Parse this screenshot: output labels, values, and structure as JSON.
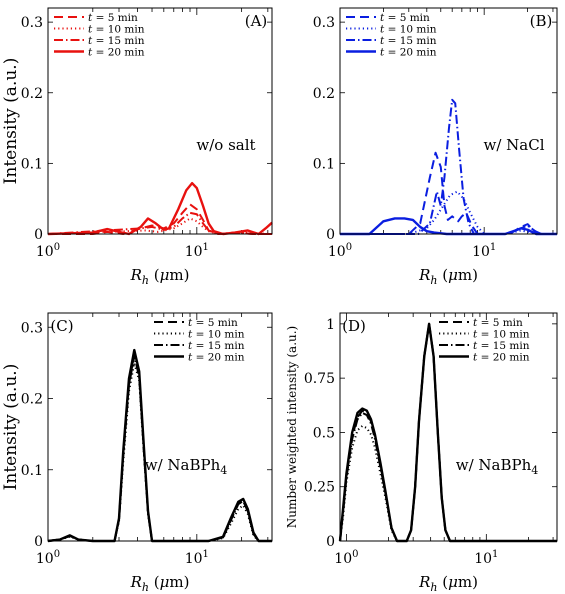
{
  "figure": {
    "legend_labels": [
      "t = 5 min",
      "t = 10 min",
      "t = 15 min",
      "t = 20 min"
    ],
    "legend_styles": [
      "dashed",
      "dotted",
      "dashdot",
      "solid"
    ]
  },
  "chart_data": [
    {
      "type": "line",
      "panel_label": "(A)",
      "annotation": "w/o salt",
      "xlabel": "R_h (μm)",
      "ylabel": "Intensity (a.u.)",
      "xscale": "log",
      "xlim": [
        1,
        32
      ],
      "ylim": [
        0,
        0.32
      ],
      "yticks": [
        0,
        0.1,
        0.2,
        0.3
      ],
      "ytick_labels": [
        "0",
        "0.1",
        "0.2",
        "0.3"
      ],
      "xticks": [
        1,
        10
      ],
      "xtick_labels": [
        "10^0",
        "10^1"
      ],
      "color": "#e8110f",
      "legend_position": "top-left",
      "series": [
        {
          "name": "t = 5 min",
          "style": "dashed",
          "x": [
            1,
            2,
            2.5,
            3.2,
            4.2,
            5,
            6,
            7,
            8,
            9,
            10,
            11,
            12,
            14,
            18,
            24,
            32
          ],
          "y": [
            0,
            0,
            0.003,
            0,
            0.008,
            0.012,
            0.008,
            0.015,
            0.03,
            0.042,
            0.035,
            0.02,
            0.005,
            0,
            0.002,
            0,
            0
          ]
        },
        {
          "name": "t = 10 min",
          "style": "dotted",
          "x": [
            1,
            2.5,
            4.5,
            5.5,
            7,
            8,
            9,
            10,
            11,
            12,
            14,
            20,
            32
          ],
          "y": [
            0,
            0.003,
            0.005,
            0.003,
            0.008,
            0.015,
            0.022,
            0.018,
            0.01,
            0.004,
            0,
            0.002,
            0
          ]
        },
        {
          "name": "t = 15 min",
          "style": "dashdot",
          "x": [
            1,
            2.5,
            4.2,
            5,
            6,
            7,
            8,
            9,
            10,
            11,
            12,
            14,
            18,
            24,
            32
          ],
          "y": [
            0,
            0.005,
            0.008,
            0.01,
            0.006,
            0.01,
            0.022,
            0.03,
            0.028,
            0.015,
            0.005,
            0,
            0.002,
            0,
            0
          ]
        },
        {
          "name": "t = 20 min",
          "style": "solid",
          "x": [
            1,
            2,
            2.5,
            3,
            3.5,
            4.2,
            4.7,
            5.3,
            6,
            6.5,
            7.5,
            8.5,
            9.3,
            10,
            11,
            12,
            13,
            15,
            18,
            22,
            26,
            29,
            32
          ],
          "y": [
            0,
            0.002,
            0.007,
            0.003,
            0,
            0.01,
            0.022,
            0.015,
            0.006,
            0.008,
            0.035,
            0.062,
            0.072,
            0.065,
            0.04,
            0.015,
            0.004,
            0,
            0.002,
            0.005,
            0,
            0.008,
            0.016
          ]
        }
      ]
    },
    {
      "type": "line",
      "panel_label": "(B)",
      "annotation": "w/ NaCl",
      "xlabel": "R_h (μm)",
      "ylabel": "",
      "xscale": "log",
      "xlim": [
        1,
        32
      ],
      "ylim": [
        0,
        0.32
      ],
      "yticks": [
        0,
        0.1,
        0.2,
        0.3
      ],
      "ytick_labels": [
        "0",
        "0.1",
        "0.2",
        "0.3"
      ],
      "xticks": [
        1,
        10
      ],
      "xtick_labels": [
        "10^0",
        "10^1"
      ],
      "color": "#0a1ee0",
      "legend_position": "top-left",
      "series": [
        {
          "name": "t = 5 min",
          "style": "dashed",
          "x": [
            1,
            3,
            3.6,
            4.2,
            4.6,
            5,
            5.3,
            5.6,
            6,
            6.6,
            7,
            7.5,
            8.2,
            9,
            10,
            12,
            15,
            18,
            20,
            22,
            25,
            32
          ],
          "y": [
            0,
            0,
            0.015,
            0.08,
            0.115,
            0.095,
            0.04,
            0.02,
            0.025,
            0.018,
            0.025,
            0.03,
            0.012,
            0,
            0,
            0,
            0,
            0.01,
            0.014,
            0.005,
            0,
            0
          ]
        },
        {
          "name": "t = 10 min",
          "style": "dotted",
          "x": [
            1,
            3,
            4,
            4.5,
            5.2,
            5.8,
            6.5,
            7.2,
            8,
            9,
            10,
            14,
            18,
            24,
            32
          ],
          "y": [
            0,
            0,
            0.008,
            0.02,
            0.04,
            0.055,
            0.06,
            0.05,
            0.03,
            0.01,
            0,
            0,
            0.005,
            0,
            0
          ]
        },
        {
          "name": "t = 15 min",
          "style": "dashdot",
          "x": [
            1,
            3.5,
            4.2,
            4.7,
            5,
            5.3,
            5.7,
            6,
            6.3,
            6.7,
            7.2,
            7.8,
            8.5,
            10,
            14,
            18,
            20,
            24,
            32
          ],
          "y": [
            0,
            0,
            0.015,
            0.06,
            0.04,
            0.08,
            0.15,
            0.19,
            0.185,
            0.12,
            0.05,
            0.015,
            0,
            0,
            0,
            0.008,
            0.012,
            0,
            0
          ]
        },
        {
          "name": "t = 20 min",
          "style": "solid",
          "x": [
            1,
            1.6,
            2,
            2.4,
            2.8,
            3.2,
            3.6,
            4,
            4.5,
            5.5,
            7,
            10,
            12,
            14,
            16,
            18,
            20,
            23,
            26,
            32
          ],
          "y": [
            0,
            0,
            0.018,
            0.022,
            0.022,
            0.02,
            0.01,
            0.004,
            0.002,
            0,
            0,
            0,
            0,
            0,
            0.004,
            0.008,
            0.006,
            0,
            0,
            0
          ]
        }
      ]
    },
    {
      "type": "line",
      "panel_label": "(C)",
      "annotation": "w/ NaBPh4",
      "xlabel": "R_h (μm)",
      "ylabel": "Intensity (a.u.)",
      "xscale": "log",
      "xlim": [
        1,
        32
      ],
      "ylim": [
        0,
        0.32
      ],
      "yticks": [
        0,
        0.1,
        0.2,
        0.3
      ],
      "ytick_labels": [
        "0",
        "0.1",
        "0.2",
        "0.3"
      ],
      "xticks": [
        1,
        10
      ],
      "xtick_labels": [
        "10^0",
        "10^1"
      ],
      "color": "#000000",
      "legend_position": "top-right",
      "series": [
        {
          "name": "t = 5 min",
          "style": "dashed",
          "x": [
            1,
            1.2,
            1.4,
            1.6,
            2,
            2.8,
            3,
            3.2,
            3.5,
            3.8,
            4.1,
            4.4,
            4.7,
            5,
            6,
            12,
            15,
            17,
            19,
            20.5,
            22,
            24,
            26,
            32
          ],
          "y": [
            0,
            0.002,
            0.007,
            0.002,
            0,
            0,
            0.03,
            0.12,
            0.22,
            0.262,
            0.232,
            0.13,
            0.04,
            0,
            0,
            0,
            0.005,
            0.03,
            0.052,
            0.056,
            0.042,
            0.01,
            0,
            0
          ]
        },
        {
          "name": "t = 10 min",
          "style": "dotted",
          "x": [
            1,
            1.2,
            1.4,
            1.6,
            2,
            2.8,
            3,
            3.2,
            3.5,
            3.8,
            4.1,
            4.4,
            4.7,
            5,
            6,
            12,
            15,
            17,
            19,
            20.5,
            22,
            24,
            26,
            32
          ],
          "y": [
            0,
            0.002,
            0.006,
            0.002,
            0,
            0,
            0.028,
            0.11,
            0.21,
            0.25,
            0.225,
            0.125,
            0.038,
            0,
            0,
            0,
            0.004,
            0.025,
            0.045,
            0.05,
            0.038,
            0.008,
            0,
            0
          ]
        },
        {
          "name": "t = 15 min",
          "style": "dashdot",
          "x": [
            1,
            1.2,
            1.4,
            1.6,
            2,
            2.8,
            3,
            3.2,
            3.5,
            3.8,
            4.1,
            4.4,
            4.7,
            5,
            6,
            12,
            15,
            17,
            19,
            20.5,
            22,
            24,
            26,
            32
          ],
          "y": [
            0,
            0.002,
            0.007,
            0.002,
            0,
            0,
            0.03,
            0.118,
            0.218,
            0.26,
            0.23,
            0.128,
            0.04,
            0,
            0,
            0,
            0.005,
            0.03,
            0.052,
            0.056,
            0.042,
            0.01,
            0,
            0
          ]
        },
        {
          "name": "t = 20 min",
          "style": "solid",
          "x": [
            1,
            1.2,
            1.4,
            1.6,
            2,
            2.8,
            3,
            3.2,
            3.5,
            3.8,
            4.1,
            4.4,
            4.7,
            5,
            6,
            12,
            15,
            17,
            19,
            20.5,
            22,
            24,
            26,
            32
          ],
          "y": [
            0,
            0.002,
            0.008,
            0.002,
            0,
            0,
            0.032,
            0.125,
            0.228,
            0.268,
            0.238,
            0.135,
            0.042,
            0,
            0,
            0,
            0.006,
            0.033,
            0.055,
            0.059,
            0.045,
            0.012,
            0,
            0
          ]
        }
      ]
    },
    {
      "type": "line",
      "panel_label": "(D)",
      "annotation": "w/ NaBPh4",
      "xlabel": "R_h (μm)",
      "ylabel": "Number weighted intensity (a.u.)",
      "xscale": "log",
      "xlim": [
        0.9,
        32
      ],
      "ylim": [
        0,
        1.05
      ],
      "yticks": [
        0,
        0.25,
        0.5,
        0.75,
        1
      ],
      "ytick_labels": [
        "0",
        "0.25",
        "0.5",
        "0.75",
        "1"
      ],
      "xticks": [
        1,
        10
      ],
      "xtick_labels": [
        "10^0",
        "10^1"
      ],
      "color": "#000000",
      "legend_position": "top-right",
      "series": [
        {
          "name": "t = 5 min",
          "style": "dashed",
          "x": [
            0.9,
            0.95,
            1,
            1.1,
            1.2,
            1.3,
            1.4,
            1.5,
            1.6,
            1.75,
            1.9,
            2.1,
            2.3,
            2.5,
            2.7,
            2.9,
            3.1,
            3.3,
            3.6,
            3.9,
            4.2,
            4.5,
            4.8,
            5.1,
            5.5,
            6,
            32
          ],
          "y": [
            0,
            0.15,
            0.3,
            0.48,
            0.57,
            0.6,
            0.59,
            0.55,
            0.48,
            0.35,
            0.22,
            0.06,
            0,
            0,
            0,
            0.05,
            0.25,
            0.55,
            0.85,
            1,
            0.85,
            0.5,
            0.2,
            0.05,
            0,
            0,
            0
          ]
        },
        {
          "name": "t = 10 min",
          "style": "dotted",
          "x": [
            0.9,
            0.95,
            1,
            1.1,
            1.2,
            1.3,
            1.4,
            1.5,
            1.6,
            1.75,
            1.9,
            2.1,
            2.3,
            2.5,
            2.7,
            2.9,
            3.1,
            3.3,
            3.6,
            3.9,
            4.2,
            4.5,
            4.8,
            5.1,
            5.5,
            6,
            32
          ],
          "y": [
            0,
            0.12,
            0.27,
            0.43,
            0.51,
            0.53,
            0.52,
            0.49,
            0.43,
            0.31,
            0.2,
            0.05,
            0,
            0,
            0,
            0.05,
            0.25,
            0.55,
            0.85,
            1,
            0.85,
            0.5,
            0.2,
            0.05,
            0,
            0,
            0
          ]
        },
        {
          "name": "t = 15 min",
          "style": "dashdot",
          "x": [
            0.9,
            0.95,
            1,
            1.1,
            1.2,
            1.3,
            1.4,
            1.5,
            1.6,
            1.75,
            1.9,
            2.1,
            2.3,
            2.5,
            2.7,
            2.9,
            3.1,
            3.3,
            3.6,
            3.9,
            4.2,
            4.5,
            4.8,
            5.1,
            5.5,
            6,
            32
          ],
          "y": [
            0,
            0.14,
            0.29,
            0.47,
            0.56,
            0.59,
            0.58,
            0.54,
            0.47,
            0.34,
            0.22,
            0.06,
            0,
            0,
            0,
            0.05,
            0.25,
            0.55,
            0.85,
            1,
            0.85,
            0.5,
            0.2,
            0.05,
            0,
            0,
            0
          ]
        },
        {
          "name": "t = 20 min",
          "style": "solid",
          "x": [
            0.9,
            0.95,
            1,
            1.1,
            1.2,
            1.3,
            1.4,
            1.5,
            1.6,
            1.75,
            1.9,
            2.1,
            2.3,
            2.5,
            2.7,
            2.9,
            3.1,
            3.3,
            3.6,
            3.9,
            4.2,
            4.5,
            4.8,
            5.1,
            5.5,
            6,
            32
          ],
          "y": [
            0,
            0.16,
            0.31,
            0.5,
            0.59,
            0.61,
            0.6,
            0.56,
            0.49,
            0.36,
            0.23,
            0.06,
            0,
            0,
            0,
            0.05,
            0.25,
            0.55,
            0.85,
            1,
            0.85,
            0.5,
            0.2,
            0.05,
            0,
            0,
            0
          ]
        }
      ]
    }
  ]
}
